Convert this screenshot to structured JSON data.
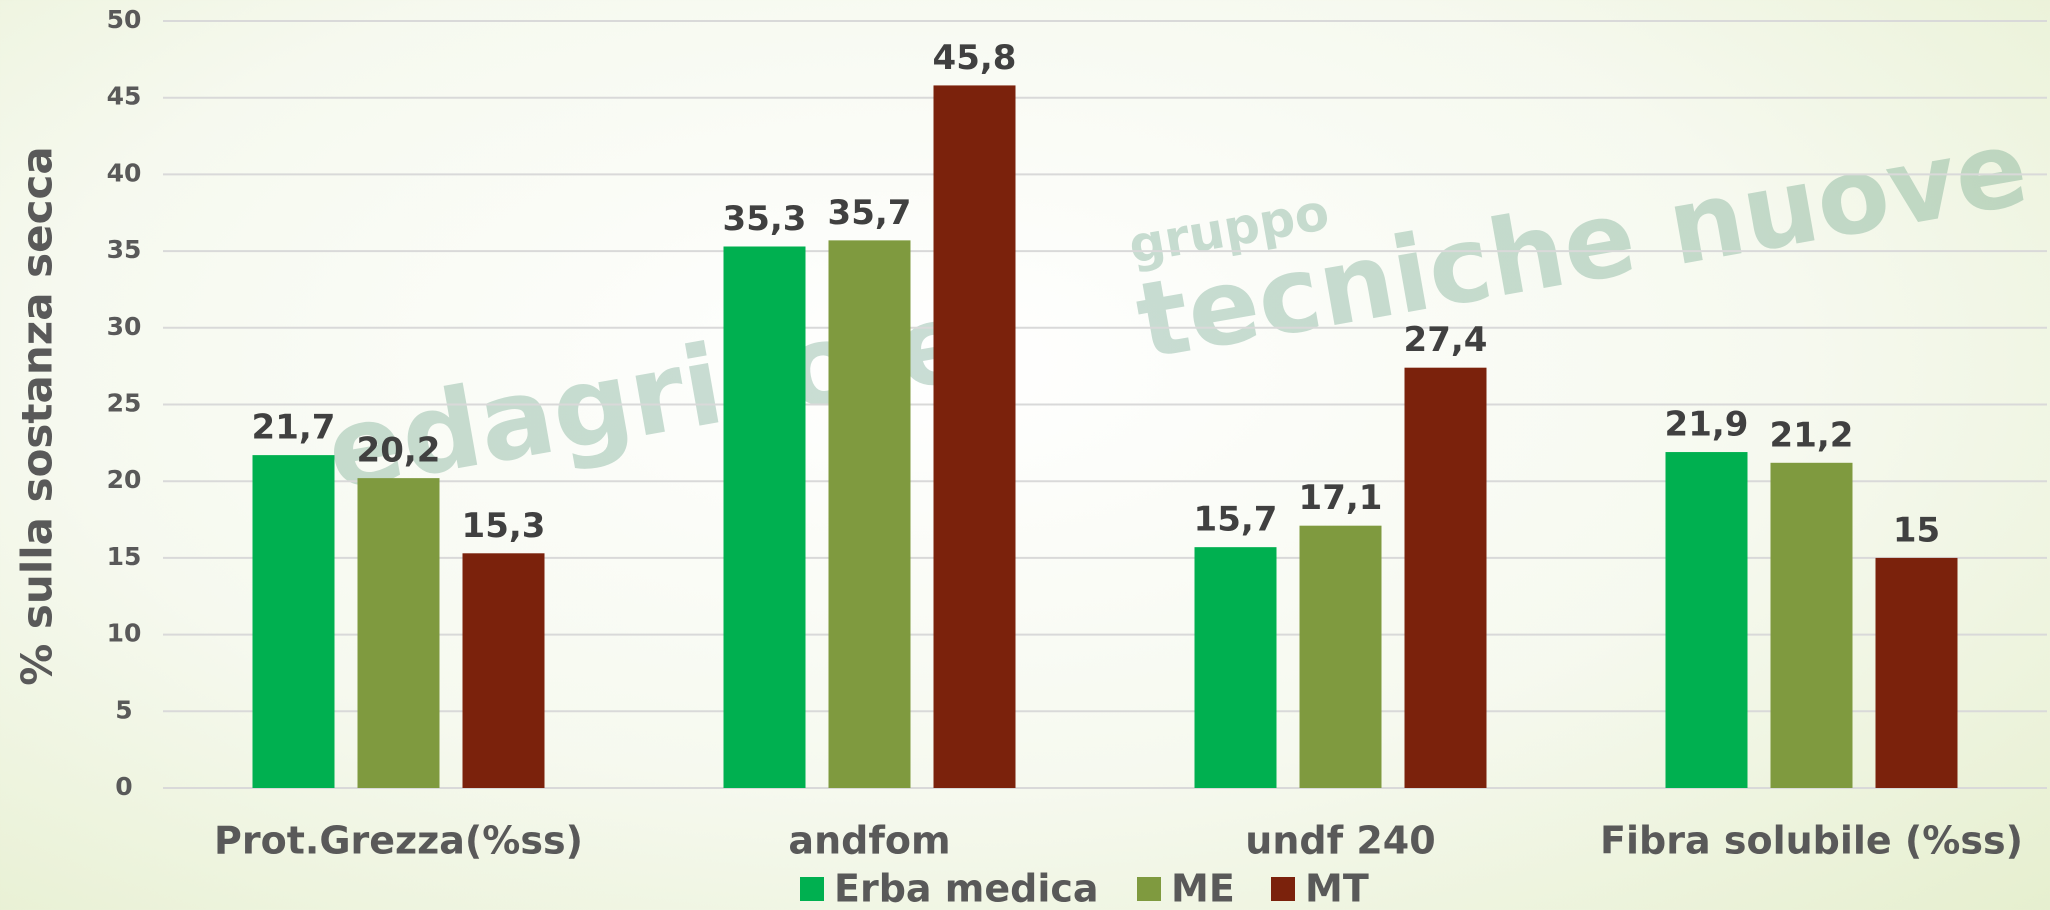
{
  "chart_data": {
    "type": "bar",
    "y_label": "% sulla sostanza secca",
    "categories": [
      "Prot.Grezza(%ss)",
      "andfom",
      "undf 240",
      "Fibra solubile (%ss)"
    ],
    "series": [
      {
        "name": "Erba medica",
        "color": "#00b050",
        "values": [
          21.7,
          35.3,
          15.7,
          21.9
        ],
        "value_labels": [
          "21,7",
          "35,3",
          "15,7",
          "21,9"
        ]
      },
      {
        "name": "ME",
        "color": "#7f9a3f",
        "values": [
          20.2,
          35.7,
          17.1,
          21.2
        ],
        "value_labels": [
          "20,2",
          "35,7",
          "17,1",
          "21,2"
        ]
      },
      {
        "name": "MT",
        "color": "#7b220c",
        "values": [
          15.3,
          45.8,
          27.4,
          15
        ],
        "value_labels": [
          "15,3",
          "45,8",
          "27,4",
          "15"
        ]
      }
    ],
    "ylim": [
      0,
      50
    ],
    "yticks": [
      0,
      5,
      10,
      15,
      20,
      25,
      30,
      35,
      40,
      45,
      50
    ],
    "grid": true,
    "watermarks": [
      "edagricole",
      "gruppo",
      "tecniche nuove"
    ]
  }
}
